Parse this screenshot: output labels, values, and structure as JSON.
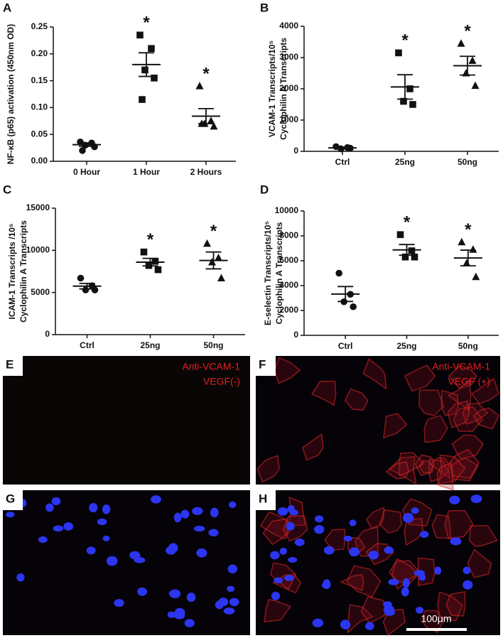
{
  "chart_data": [
    {
      "type": "dot",
      "panel": "A",
      "ylabel": "NF-κB (p65) activation (450nm OD)",
      "categories": [
        "0 Hour",
        "1 Hour",
        "2 Hours"
      ],
      "markers": [
        "circle",
        "square",
        "triangle"
      ],
      "points": [
        [
          0.036,
          0.034,
          0.03,
          0.027,
          0.02
        ],
        [
          0.235,
          0.21,
          0.17,
          0.155,
          0.115
        ],
        [
          0.14,
          0.075,
          0.07,
          0.065,
          0.07
        ]
      ],
      "mean": [
        0.031,
        0.18,
        0.084
      ],
      "sem": [
        0.003,
        0.022,
        0.014
      ],
      "annotations": [
        null,
        "*",
        "*"
      ],
      "ylim": [
        0,
        0.25
      ],
      "yticks": [
        {
          "value": 0,
          "label": "0.00"
        },
        {
          "value": 0.05,
          "label": "0.05"
        },
        {
          "value": 0.1,
          "label": "0.10"
        },
        {
          "value": 0.15,
          "label": "0.15"
        },
        {
          "value": 0.2,
          "label": "0.20"
        },
        {
          "value": 0.25,
          "label": "0.25"
        }
      ]
    },
    {
      "type": "dot",
      "panel": "B",
      "ylabel": [
        "VCAM-1 Transcripts/10⁵",
        "Cyclophilin A Transcripts"
      ],
      "categories": [
        "Ctrl",
        "25ng",
        "50ng"
      ],
      "markers": [
        "circle",
        "square",
        "triangle"
      ],
      "points": [
        [
          150,
          120,
          80,
          100
        ],
        [
          3150,
          2000,
          1600,
          1500
        ],
        [
          3450,
          2900,
          2500,
          2100
        ]
      ],
      "mean": [
        110,
        2060,
        2740
      ],
      "sem": [
        20,
        390,
        300
      ],
      "annotations": [
        null,
        "*",
        "*"
      ],
      "ylim": [
        0,
        4000
      ],
      "yticks": [
        0,
        1000,
        2000,
        3000,
        4000
      ]
    },
    {
      "type": "dot",
      "panel": "C",
      "ylabel": [
        "ICAM-1 Transcripts /10⁵",
        "Cyclophilin A Transcripts"
      ],
      "categories": [
        "Ctrl",
        "25ng",
        "50ng"
      ],
      "markers": [
        "circle",
        "square",
        "triangle"
      ],
      "points": [
        [
          6700,
          5800,
          5300,
          5300
        ],
        [
          9800,
          8700,
          8200,
          7700
        ],
        [
          10800,
          9100,
          8600,
          6700
        ]
      ],
      "mean": [
        5750,
        8600,
        8800
      ],
      "sem": [
        330,
        450,
        1000
      ],
      "annotations": [
        null,
        "*",
        "*"
      ],
      "ylim": [
        0,
        15000
      ],
      "yticks": [
        0,
        5000,
        10000,
        15000
      ]
    },
    {
      "type": "dot",
      "panel": "D",
      "ylabel": [
        "E-selectin Transcripts/10⁵",
        "Cyclophilin A Transcripts"
      ],
      "categories": [
        "Ctrl",
        "25ng",
        "50ng"
      ],
      "markers": [
        "circle",
        "square",
        "triangle"
      ],
      "points": [
        [
          5000,
          3300,
          2700,
          2300
        ],
        [
          8100,
          6800,
          6300,
          6300
        ],
        [
          7500,
          6900,
          5800,
          4700
        ]
      ],
      "mean": [
        3325,
        6875,
        6225
      ],
      "sem": [
        600,
        430,
        630
      ],
      "annotations": [
        null,
        "*",
        "*"
      ],
      "ylim": [
        0,
        10000
      ],
      "yticks": [
        0,
        2000,
        4000,
        6000,
        8000,
        10000
      ]
    }
  ],
  "panels": [
    {
      "letter": "E",
      "labels": [
        "Anti-VCAM-1",
        "VEGF(-)"
      ]
    },
    {
      "letter": "F",
      "labels": [
        "Anti-VCAM-1",
        "VEGF (+)"
      ]
    },
    {
      "letter": "G"
    },
    {
      "letter": "H",
      "scale_bar": "100μm"
    }
  ]
}
